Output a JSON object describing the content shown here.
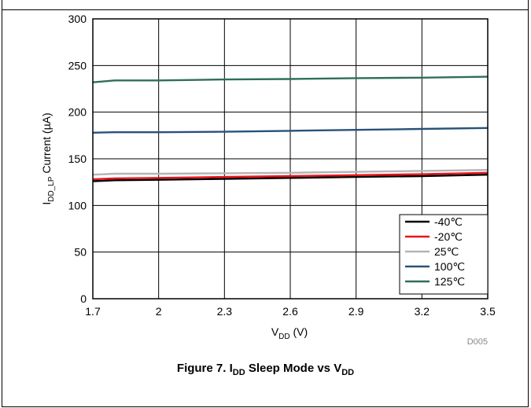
{
  "chart_data": {
    "type": "line",
    "title": "",
    "xlabel": "V(DD) (V)",
    "ylabel": "I(DD_LP) Current (µA)",
    "xlim": [
      1.7,
      3.5
    ],
    "ylim": [
      0,
      300
    ],
    "xticks": [
      "1.7",
      "2",
      "2.3",
      "2.6",
      "2.9",
      "3.2",
      "3.5"
    ],
    "yticks": [
      "0",
      "50",
      "100",
      "150",
      "200",
      "250",
      "300"
    ],
    "grid": true,
    "legend_position": "bottom-right",
    "watermark": "D005",
    "series": [
      {
        "name": "-40℃",
        "color": "#000000",
        "x": [
          1.7,
          1.8,
          2.0,
          2.3,
          2.6,
          2.9,
          3.2,
          3.5
        ],
        "y": [
          126,
          127,
          127.5,
          128.5,
          129.5,
          130.5,
          131.5,
          133
        ]
      },
      {
        "name": "-20℃",
        "color": "#e8141c",
        "x": [
          1.7,
          1.8,
          2.0,
          2.3,
          2.6,
          2.9,
          3.2,
          3.5
        ],
        "y": [
          128,
          129,
          129.5,
          130.5,
          131.5,
          132.5,
          133.5,
          135
        ]
      },
      {
        "name": "25℃",
        "color": "#b4b4b4",
        "x": [
          1.7,
          1.8,
          2.0,
          2.3,
          2.6,
          2.9,
          3.2,
          3.5
        ],
        "y": [
          133,
          134,
          134,
          134.5,
          135,
          136,
          137,
          138
        ]
      },
      {
        "name": "100℃",
        "color": "#27527a",
        "x": [
          1.7,
          1.8,
          2.0,
          2.3,
          2.6,
          2.9,
          3.2,
          3.5
        ],
        "y": [
          178,
          178.5,
          178.5,
          179,
          180,
          181,
          182,
          183
        ]
      },
      {
        "name": "125℃",
        "color": "#2e7055",
        "x": [
          1.7,
          1.8,
          2.0,
          2.3,
          2.6,
          2.9,
          3.2,
          3.5
        ],
        "y": [
          232,
          234,
          234,
          235,
          235.5,
          236.5,
          237,
          238
        ]
      }
    ]
  },
  "labels": {
    "ylabel_main": "I",
    "ylabel_sub": "DD_LP",
    "ylabel_rest": " Current (µA)",
    "xlabel_main": "V",
    "xlabel_sub": "DD",
    "xlabel_rest": " (V)",
    "caption_part1": "Figure 7. I",
    "caption_sub1": "DD",
    "caption_part2": " Sleep Mode vs V",
    "caption_sub2": "DD"
  }
}
